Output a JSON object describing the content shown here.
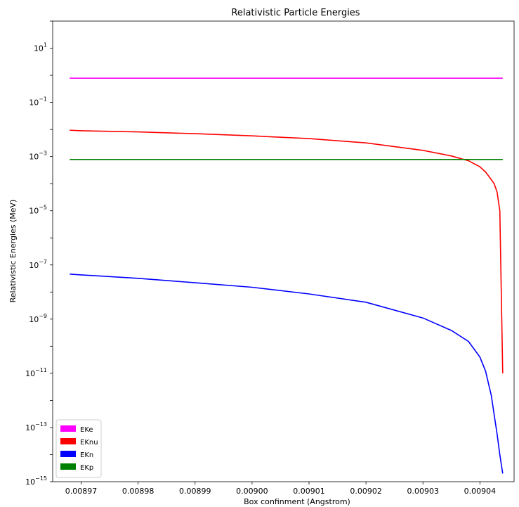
{
  "chart_data": {
    "type": "line",
    "title": "Relativistic Particle Energies",
    "xlabel": "Box confinment (Angstrom)",
    "ylabel": "Relativistic Energies (MeV)",
    "yscale": "log",
    "xlim": [
      0.008965,
      0.009046
    ],
    "ylim": [
      1e-15,
      100
    ],
    "grid": false,
    "legend_position": "lower-left",
    "xticks": [
      "0.00897",
      "0.00898",
      "0.00899",
      "0.00900",
      "0.00901",
      "0.00902",
      "0.00903",
      "0.00904"
    ],
    "xtick_values": [
      0.00897,
      0.00898,
      0.00899,
      0.009,
      0.00901,
      0.00902,
      0.00903,
      0.00904
    ],
    "ytick_exponents": [
      1,
      -1,
      -3,
      -5,
      -7,
      -9,
      -11,
      -13,
      -15
    ],
    "series": [
      {
        "name": "EKe",
        "color": "#ff00ff",
        "x": [
          0.008968,
          0.009044
        ],
        "y": [
          0.78,
          0.78
        ]
      },
      {
        "name": "EKnu",
        "color": "#ff0000",
        "x": [
          0.008968,
          0.00897,
          0.00898,
          0.00899,
          0.009,
          0.00901,
          0.00902,
          0.00903,
          0.009035,
          0.009038,
          0.00904,
          0.009041,
          0.009042,
          0.0090425,
          0.009043,
          0.0090435,
          0.009044
        ],
        "y": [
          0.0094,
          0.009,
          0.0081,
          0.007,
          0.0058,
          0.0046,
          0.0032,
          0.0017,
          0.00105,
          0.0007,
          0.00042,
          0.00027,
          0.00014,
          0.0001,
          5e-05,
          1e-05,
          1e-11
        ]
      },
      {
        "name": "EKn",
        "color": "#0000ff",
        "x": [
          0.008968,
          0.00897,
          0.00898,
          0.00899,
          0.009,
          0.00901,
          0.00902,
          0.00903,
          0.009035,
          0.009038,
          0.00904,
          0.009041,
          0.009042,
          0.0090425,
          0.009043,
          0.0090435,
          0.009044
        ],
        "y": [
          4.6e-08,
          4.3e-08,
          3.2e-08,
          2.2e-08,
          1.5e-08,
          8.5e-09,
          4.2e-09,
          1.1e-09,
          3.8e-10,
          1.5e-10,
          4e-11,
          1.2e-11,
          1.5e-12,
          3e-13,
          6e-14,
          1e-14,
          2e-15
        ]
      },
      {
        "name": "EKp",
        "color": "#008000",
        "x": [
          0.008968,
          0.009044
        ],
        "y": [
          0.00078,
          0.00078
        ]
      }
    ]
  }
}
